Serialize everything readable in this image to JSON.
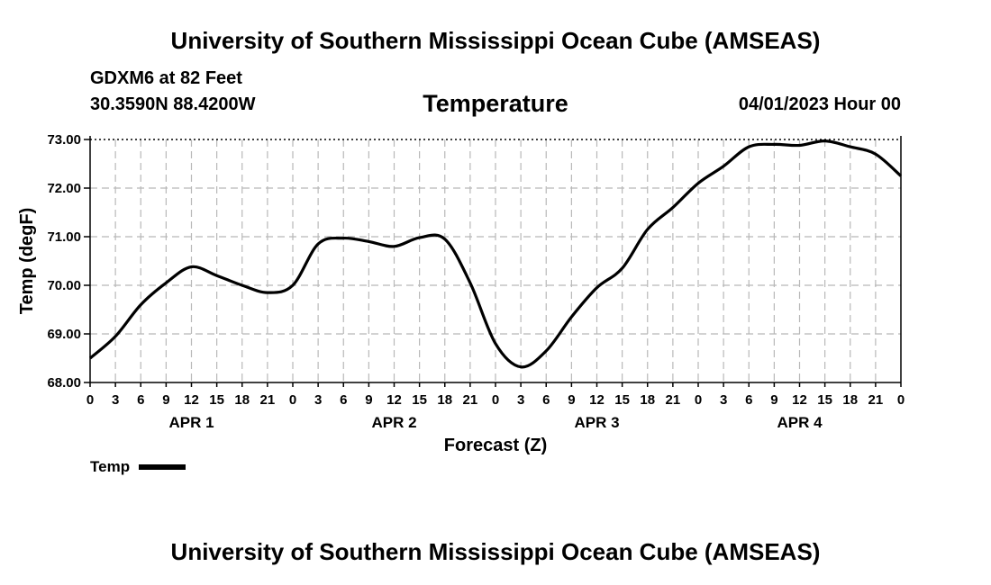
{
  "header": {
    "title": "University of Southern Mississippi Ocean Cube (AMSEAS)",
    "station": "GDXM6 at 82 Feet",
    "coords": "30.3590N  88.4200W",
    "forecast_time": "04/01/2023 Hour 00"
  },
  "footer": {
    "title": "University of Southern Mississippi Ocean Cube (AMSEAS)"
  },
  "legend": {
    "label": "Temp"
  },
  "chart_data": {
    "type": "line",
    "title": "Temperature",
    "xlabel": "Forecast (Z)",
    "ylabel": "Temp (degF)",
    "xlim": [
      0,
      96
    ],
    "ylim": [
      68,
      73
    ],
    "yticks": [
      "68.00",
      "69.00",
      "70.00",
      "71.00",
      "72.00",
      "73.00"
    ],
    "xtick_labels": [
      "0",
      "3",
      "6",
      "9",
      "12",
      "15",
      "18",
      "21",
      "0",
      "3",
      "6",
      "9",
      "12",
      "15",
      "18",
      "21",
      "0",
      "3",
      "6",
      "9",
      "12",
      "15",
      "18",
      "21",
      "0",
      "3",
      "6",
      "9",
      "12",
      "15",
      "18",
      "21",
      "0"
    ],
    "day_labels": [
      {
        "label": "APR 1",
        "hour": 12
      },
      {
        "label": "APR 2",
        "hour": 36
      },
      {
        "label": "APR 3",
        "hour": 60
      },
      {
        "label": "APR 4",
        "hour": 84
      }
    ],
    "grid": true,
    "series": [
      {
        "name": "Temp",
        "color": "#000000",
        "x": [
          0,
          3,
          6,
          9,
          12,
          15,
          18,
          21,
          24,
          27,
          30,
          33,
          36,
          39,
          42,
          45,
          48,
          51,
          54,
          57,
          60,
          63,
          66,
          69,
          72,
          75,
          78,
          81,
          84,
          87,
          90,
          93,
          96
        ],
        "values": [
          68.5,
          68.95,
          69.6,
          70.05,
          70.38,
          70.2,
          70.0,
          69.85,
          70.0,
          70.85,
          70.97,
          70.9,
          70.8,
          70.98,
          70.95,
          70.05,
          68.8,
          68.32,
          68.65,
          69.35,
          69.95,
          70.35,
          71.15,
          71.6,
          72.1,
          72.45,
          72.85,
          72.9,
          72.88,
          72.97,
          72.85,
          72.7,
          72.25
        ]
      }
    ]
  }
}
